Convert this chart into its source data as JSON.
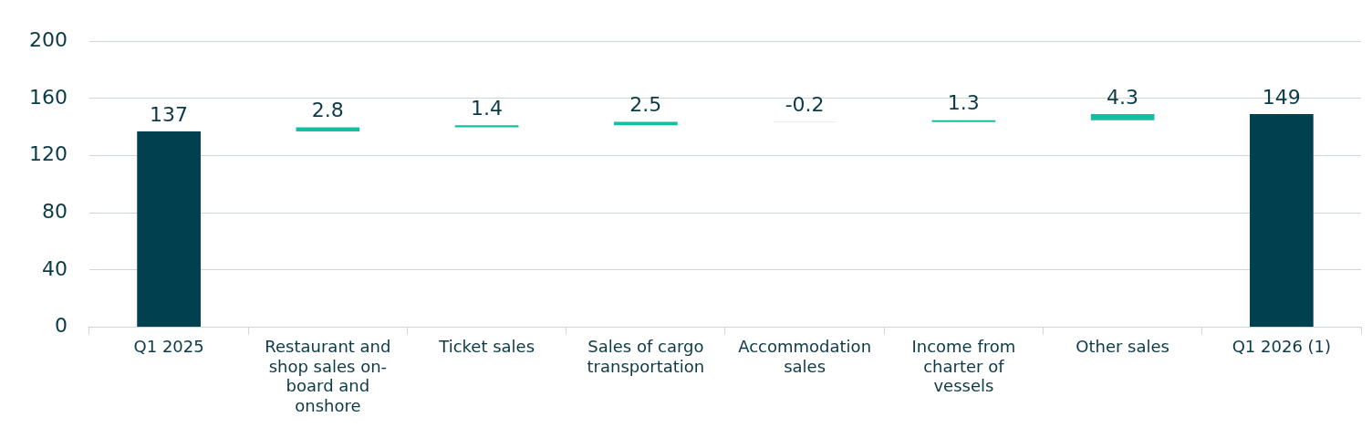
{
  "chart_data": {
    "type": "bar",
    "categories": [
      "Q1 2025",
      "Restaurant and shop sales on-board and onshore",
      "Ticket sales",
      "Sales of cargo transportation",
      "Accommodation sales",
      "Income from charter of vessels",
      "Other sales",
      "Q1 2026 (1)"
    ],
    "values": [
      137,
      2.8,
      1.4,
      2.5,
      -0.2,
      1.3,
      4.3,
      149
    ],
    "base": [
      0,
      137,
      139.8,
      141.2,
      143.7,
      143.5,
      144.8,
      0
    ],
    "colors": [
      "#01404f",
      "#12bfa0",
      "#12bfa0",
      "#12bfa0",
      "#f4a58f",
      "#12bfa0",
      "#12bfa0",
      "#01404f"
    ],
    "ylim": [
      0,
      200
    ],
    "yticks": [
      0,
      40,
      80,
      120,
      160,
      200
    ],
    "grid": "y",
    "legend": false,
    "data_labels": true
  }
}
